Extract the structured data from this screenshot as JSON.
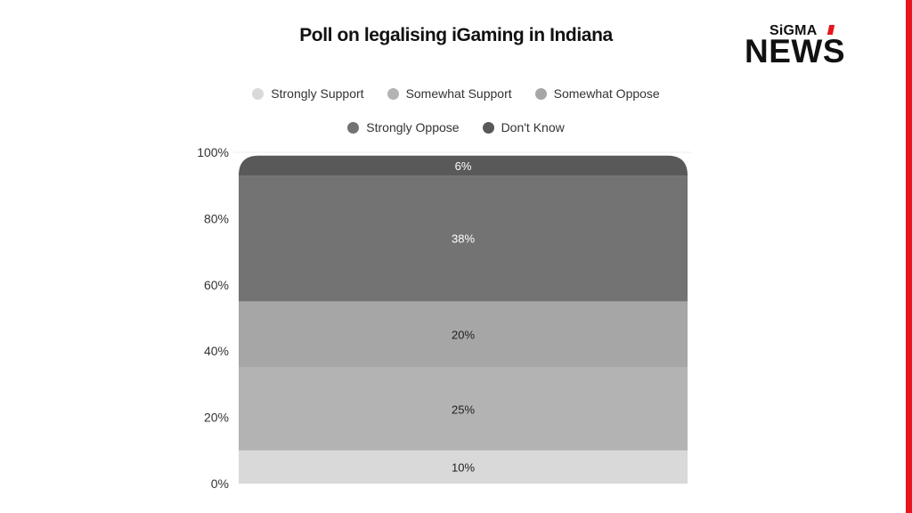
{
  "title": "Poll on legalising iGaming in Indiana",
  "logo": {
    "top": "SiGMA",
    "bottom": "NEWS"
  },
  "colors": {
    "accent": "#e8141e"
  },
  "chart_data": {
    "type": "bar",
    "stacked": true,
    "categories": [
      ""
    ],
    "series": [
      {
        "name": "Strongly Support",
        "values": [
          10
        ],
        "color": "#d9d9d9",
        "label": "10%"
      },
      {
        "name": "Somewhat Support",
        "values": [
          25
        ],
        "color": "#b3b3b3",
        "label": "25%"
      },
      {
        "name": "Somewhat Oppose",
        "values": [
          20
        ],
        "color": "#a6a6a6",
        "label": "20%"
      },
      {
        "name": "Strongly Oppose",
        "values": [
          38
        ],
        "color": "#737373",
        "label": "38%"
      },
      {
        "name": "Don't Know",
        "values": [
          6
        ],
        "color": "#595959",
        "label": "6%"
      }
    ],
    "legend_rows": [
      [
        "Strongly Support",
        "Somewhat Support",
        "Somewhat Oppose"
      ],
      [
        "Strongly Oppose",
        "Don't Know"
      ]
    ],
    "yticks": [
      "0%",
      "20%",
      "40%",
      "60%",
      "80%",
      "100%"
    ],
    "ylim": [
      0,
      100
    ],
    "legend_position": "top",
    "grid": false
  }
}
